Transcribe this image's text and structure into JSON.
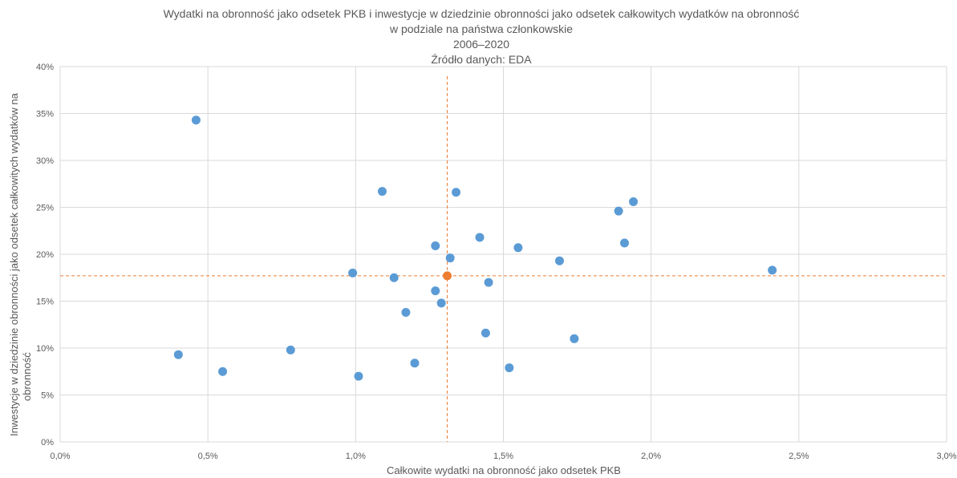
{
  "chart_data": {
    "type": "scatter",
    "title_lines": [
      "Wydatki na obronność jako odsetek PKB i inwestycje w dziedzinie obronności jako odsetek całkowitych wydatków na obronność",
      "w podziale na państwa członkowskie",
      "2006–2020",
      "Źródło danych: EDA"
    ],
    "xlabel": "Całkowite wydatki na obronność jako odsetek PKB",
    "ylabel_lines": [
      "Inwestycje w dziedzinie obronności jako odsetek całkowitych wydatków na",
      "obronność"
    ],
    "xlim": [
      0,
      3.0
    ],
    "ylim": [
      0,
      40
    ],
    "x_ticks": [
      0,
      0.5,
      1.0,
      1.5,
      2.0,
      2.5,
      3.0
    ],
    "x_tick_labels": [
      "0,0%",
      "0,5%",
      "1,0%",
      "1,5%",
      "2,0%",
      "2,5%",
      "3,0%"
    ],
    "y_ticks": [
      0,
      5,
      10,
      15,
      20,
      25,
      30,
      35,
      40
    ],
    "y_tick_labels": [
      "0%",
      "5%",
      "10%",
      "15%",
      "20%",
      "25%",
      "30%",
      "35%",
      "40%"
    ],
    "grid": true,
    "colors": {
      "points": "#5b9bd5",
      "average": "#ed7d31",
      "grid": "#d9d9d9",
      "text": "#595959"
    },
    "series": [
      {
        "color": "#5b9bd5",
        "points": [
          [
            0.4,
            9.3
          ],
          [
            0.46,
            34.3
          ],
          [
            0.55,
            7.5
          ],
          [
            0.78,
            9.8
          ],
          [
            0.99,
            18.0
          ],
          [
            1.01,
            7.0
          ],
          [
            1.09,
            26.7
          ],
          [
            1.13,
            17.5
          ],
          [
            1.17,
            13.8
          ],
          [
            1.2,
            8.4
          ],
          [
            1.27,
            20.9
          ],
          [
            1.27,
            16.1
          ],
          [
            1.29,
            14.8
          ],
          [
            1.32,
            19.6
          ],
          [
            1.34,
            26.6
          ],
          [
            1.42,
            21.8
          ],
          [
            1.44,
            11.6
          ],
          [
            1.45,
            17.0
          ],
          [
            1.52,
            7.9
          ],
          [
            1.55,
            20.7
          ],
          [
            1.69,
            19.3
          ],
          [
            1.74,
            11.0
          ],
          [
            1.89,
            24.6
          ],
          [
            1.91,
            21.2
          ],
          [
            1.94,
            25.6
          ],
          [
            2.41,
            18.3
          ]
        ]
      },
      {
        "color": "#ed7d31",
        "points": [
          [
            1.31,
            17.7
          ]
        ]
      }
    ],
    "reference_lines": {
      "x": 1.31,
      "y": 17.7,
      "color": "#ed7d31",
      "style": "dashed"
    }
  }
}
